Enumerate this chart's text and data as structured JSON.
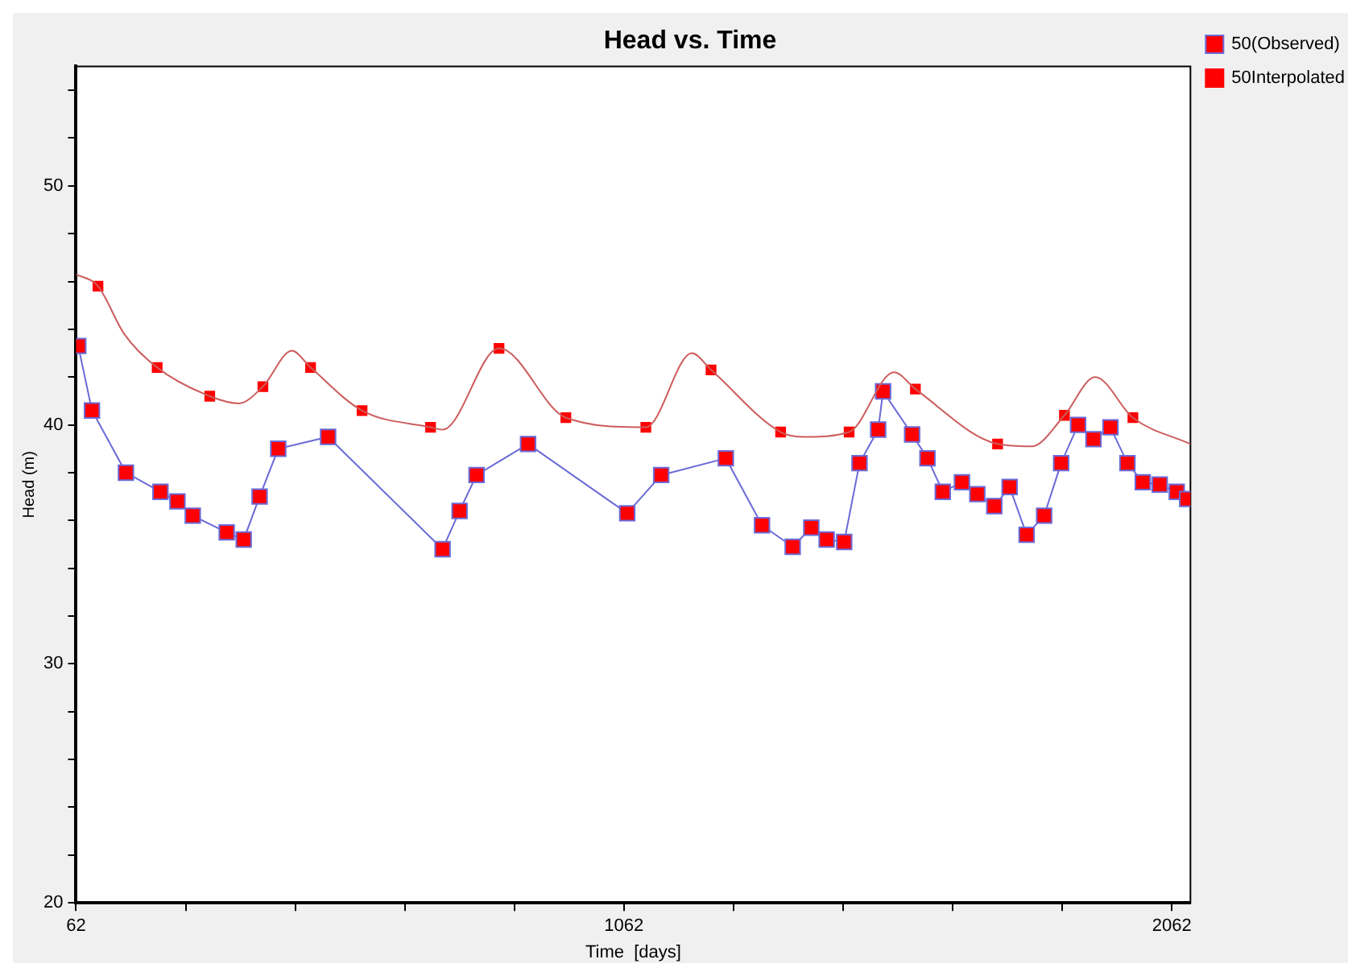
{
  "chart_data": {
    "type": "line",
    "title": "Head vs. Time",
    "xlabel": "Time  [days]",
    "ylabel": "Head (m)",
    "xlim": [
      62,
      2096
    ],
    "xticks": [
      62,
      {
        "value": 262,
        "label": null
      },
      {
        "value": 462,
        "label": null
      },
      {
        "value": 662,
        "label": null
      },
      {
        "value": 862,
        "label": null
      },
      1062,
      {
        "value": 1262,
        "label": null
      },
      {
        "value": 1462,
        "label": null
      },
      {
        "value": 1662,
        "label": null
      },
      {
        "value": 1862,
        "label": null
      },
      2062
    ],
    "ylim": [
      20,
      55
    ],
    "yticks": [
      20,
      {
        "value": 22,
        "label": null
      },
      {
        "value": 24,
        "label": null
      },
      {
        "value": 26,
        "label": null
      },
      {
        "value": 28,
        "label": null
      },
      30,
      {
        "value": 32,
        "label": null
      },
      {
        "value": 34,
        "label": null
      },
      {
        "value": 36,
        "label": null
      },
      {
        "value": 38,
        "label": null
      },
      40,
      {
        "value": 42,
        "label": null
      },
      {
        "value": 44,
        "label": null
      },
      {
        "value": 46,
        "label": null
      },
      {
        "value": 48,
        "label": null
      },
      50,
      {
        "value": 52,
        "label": null
      },
      {
        "value": 54,
        "label": null
      }
    ],
    "grid": false,
    "legend": "top right",
    "series": [
      {
        "color": "#cd5c5c",
        "marker": "none",
        "x": [
          62,
          102,
          150,
          210,
          306,
          359,
          403,
          456,
          490,
          584,
          709,
          731,
          834,
          956,
          1102,
          1186,
          1221,
          1348,
          1392,
          1473,
          1555,
          1594,
          1744,
          1806,
          1866,
          1922,
          1991,
          2096
        ],
        "values": [
          46.3,
          45.8,
          43.8,
          42.4,
          41.2,
          40.9,
          41.6,
          43.1,
          42.4,
          40.6,
          39.9,
          39.8,
          43.2,
          40.3,
          39.9,
          43.0,
          42.3,
          39.7,
          39.5,
          39.7,
          42.2,
          41.5,
          39.2,
          39.1,
          40.4,
          42.0,
          40.3,
          39.2
        ]
      },
      {
        "name": "50(Observed)",
        "color": "#6a6ad8",
        "marker": "square",
        "x": [
          66,
          91,
          153,
          216,
          247,
          275,
          337,
          368,
          397,
          431,
          522,
          731,
          762,
          793,
          887,
          1068,
          1130,
          1248,
          1314,
          1370,
          1404,
          1432,
          1464,
          1492,
          1526,
          1535,
          1588,
          1616,
          1644,
          1679,
          1707,
          1738,
          1766,
          1797,
          1829,
          1860,
          1891,
          1919,
          1950,
          1981,
          2009,
          2040,
          2071,
          2090
        ],
        "values": [
          43.3,
          40.6,
          38.0,
          37.2,
          36.8,
          36.2,
          35.5,
          35.2,
          37.0,
          39.0,
          39.5,
          34.8,
          36.4,
          37.9,
          39.2,
          36.3,
          37.9,
          38.6,
          35.8,
          34.9,
          35.7,
          35.2,
          35.1,
          38.4,
          39.8,
          41.4,
          39.6,
          38.6,
          37.2,
          37.6,
          37.1,
          36.6,
          37.4,
          35.4,
          36.2,
          38.4,
          40.0,
          39.4,
          39.9,
          38.4,
          37.6,
          37.5,
          37.2,
          36.9
        ]
      },
      {
        "name": "50Interpolated",
        "type": "scatter",
        "color": "#ff0000",
        "marker": "square",
        "x": [
          102,
          210,
          306,
          403,
          490,
          584,
          709,
          834,
          956,
          1102,
          1221,
          1348,
          1473,
          1594,
          1744,
          1866,
          1991
        ],
        "values": [
          45.8,
          42.4,
          41.2,
          41.6,
          42.4,
          40.6,
          39.9,
          43.2,
          40.3,
          39.9,
          42.3,
          39.7,
          39.7,
          41.5,
          39.2,
          40.4,
          40.3
        ]
      }
    ]
  }
}
